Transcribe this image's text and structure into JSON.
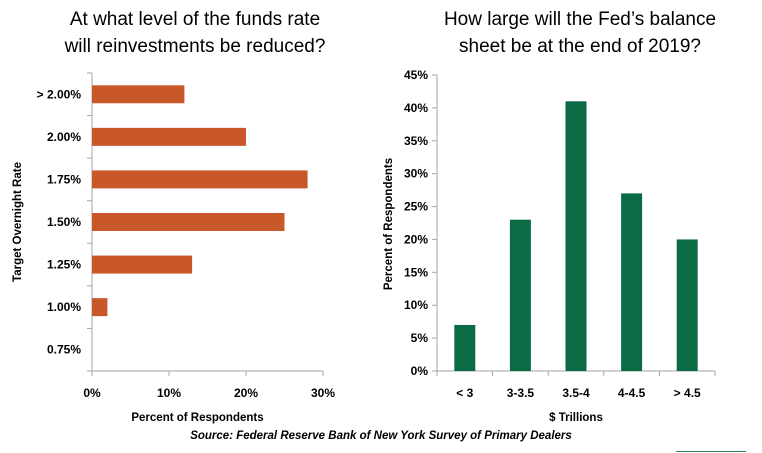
{
  "chart_data": [
    {
      "type": "bar",
      "orientation": "horizontal",
      "title_lines": [
        "At what level of the funds rate",
        "will reinvestments be reduced?"
      ],
      "categories": [
        "> 2.00%",
        "2.00%",
        "1.75%",
        "1.50%",
        "1.25%",
        "1.00%",
        "0.75%"
      ],
      "values": [
        12,
        20,
        28,
        25,
        13,
        2,
        0
      ],
      "xlabel": "Percent of Respondents",
      "ylabel": "Target Overnight Rate",
      "xticks": [
        "0%",
        "10%",
        "20%",
        "30%"
      ],
      "xlim": [
        0,
        30
      ],
      "color": "#c8582a",
      "grid": false
    },
    {
      "type": "bar",
      "orientation": "vertical",
      "title_lines": [
        "How large will the Fed’s balance",
        "sheet be at the end of 2019?"
      ],
      "categories": [
        "< 3",
        "3-3.5",
        "3.5-4",
        "4-4.5",
        "> 4.5"
      ],
      "values": [
        7,
        23,
        41,
        27,
        20
      ],
      "xlabel": "$ Trillions",
      "ylabel": "Percent of Respondents",
      "yticks": [
        "0%",
        "5%",
        "10%",
        "15%",
        "20%",
        "25%",
        "30%",
        "35%",
        "40%",
        "45%"
      ],
      "ylim": [
        0,
        45
      ],
      "color": "#0b6b45",
      "grid": false
    }
  ],
  "source": "Source: Federal Reserve Bank of New York Survey of Primary Dealers"
}
